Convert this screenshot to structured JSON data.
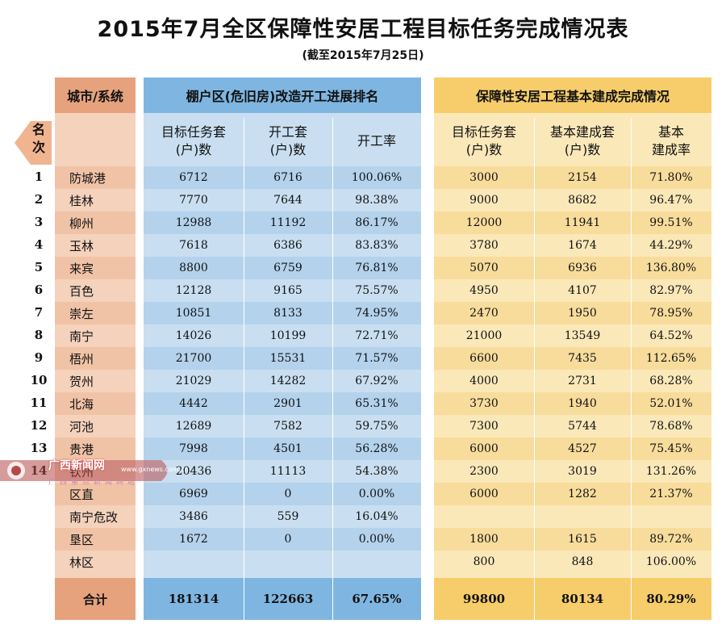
{
  "title": "2015年7月全区保障性安居工程目标任务完成情况表",
  "subtitle": "(截至2015年7月25日)",
  "headers": {
    "city": "城市/系统",
    "mid_group": "棚户区(危旧房)改造开工进展排名",
    "right_group": "保障性安居工程基本建成完成情况",
    "rank": "名次"
  },
  "subheaders": {
    "mid": [
      "目标任务套\n(户)数",
      "开工套\n(户)数",
      "开工率"
    ],
    "right": [
      "目标任务套\n(户)数",
      "基本建成套\n(户)数",
      "基本\n建成率"
    ]
  },
  "rows": [
    {
      "rank": "1",
      "city": "防城港",
      "m1": "6712",
      "m2": "6716",
      "m3": "100.06%",
      "r1": "3000",
      "r2": "2154",
      "r3": "71.80%"
    },
    {
      "rank": "2",
      "city": "桂林",
      "m1": "7770",
      "m2": "7644",
      "m3": "98.38%",
      "r1": "9000",
      "r2": "8682",
      "r3": "96.47%"
    },
    {
      "rank": "3",
      "city": "柳州",
      "m1": "12988",
      "m2": "11192",
      "m3": "86.17%",
      "r1": "12000",
      "r2": "11941",
      "r3": "99.51%"
    },
    {
      "rank": "4",
      "city": "玉林",
      "m1": "7618",
      "m2": "6386",
      "m3": "83.83%",
      "r1": "3780",
      "r2": "1674",
      "r3": "44.29%"
    },
    {
      "rank": "5",
      "city": "来宾",
      "m1": "8800",
      "m2": "6759",
      "m3": "76.81%",
      "r1": "5070",
      "r2": "6936",
      "r3": "136.80%"
    },
    {
      "rank": "6",
      "city": "百色",
      "m1": "12128",
      "m2": "9165",
      "m3": "75.57%",
      "r1": "4950",
      "r2": "4107",
      "r3": "82.97%"
    },
    {
      "rank": "7",
      "city": "崇左",
      "m1": "10851",
      "m2": "8133",
      "m3": "74.95%",
      "r1": "2470",
      "r2": "1950",
      "r3": "78.95%"
    },
    {
      "rank": "8",
      "city": "南宁",
      "m1": "14026",
      "m2": "10199",
      "m3": "72.71%",
      "r1": "21000",
      "r2": "13549",
      "r3": "64.52%"
    },
    {
      "rank": "9",
      "city": "梧州",
      "m1": "21700",
      "m2": "15531",
      "m3": "71.57%",
      "r1": "6600",
      "r2": "7435",
      "r3": "112.65%"
    },
    {
      "rank": "10",
      "city": "贺州",
      "m1": "21029",
      "m2": "14282",
      "m3": "67.92%",
      "r1": "4000",
      "r2": "2731",
      "r3": "68.28%"
    },
    {
      "rank": "11",
      "city": "北海",
      "m1": "4442",
      "m2": "2901",
      "m3": "65.31%",
      "r1": "3730",
      "r2": "1940",
      "r3": "52.01%"
    },
    {
      "rank": "12",
      "city": "河池",
      "m1": "12689",
      "m2": "7582",
      "m3": "59.75%",
      "r1": "7300",
      "r2": "5744",
      "r3": "78.68%"
    },
    {
      "rank": "13",
      "city": "贵港",
      "m1": "7998",
      "m2": "4501",
      "m3": "56.28%",
      "r1": "6000",
      "r2": "4527",
      "r3": "75.45%"
    },
    {
      "rank": "14",
      "city": "钦州",
      "m1": "20436",
      "m2": "11113",
      "m3": "54.38%",
      "r1": "2300",
      "r2": "3019",
      "r3": "131.26%"
    },
    {
      "rank": "",
      "city": "区直",
      "m1": "6969",
      "m2": "0",
      "m3": "0.00%",
      "r1": "6000",
      "r2": "1282",
      "r3": "21.37%"
    },
    {
      "rank": "",
      "city": "南宁危改",
      "m1": "3486",
      "m2": "559",
      "m3": "16.04%",
      "r1": "",
      "r2": "",
      "r3": ""
    },
    {
      "rank": "",
      "city": "垦区",
      "m1": "1672",
      "m2": "0",
      "m3": "0.00%",
      "r1": "1800",
      "r2": "1615",
      "r3": "89.72%"
    },
    {
      "rank": "",
      "city": "林区",
      "m1": "",
      "m2": "",
      "m3": "",
      "r1": "800",
      "r2": "848",
      "r3": "106.00%"
    }
  ],
  "total": {
    "label": "合计",
    "m1": "181314",
    "m2": "122663",
    "m3": "67.65%",
    "r1": "99800",
    "r2": "80134",
    "r3": "80.29%"
  },
  "watermark": {
    "name": "广西新闻网",
    "sub": "广西重点新闻网站",
    "url": "www.gxnews.com.cn"
  },
  "colors": {
    "city_bg": "#f4d2bc",
    "city_header": "#e6a27d",
    "mid_bg": "#c9dff1",
    "mid_header": "#7fb6e1",
    "right_bg": "#fbe8b9",
    "right_header": "#f6cd6a"
  }
}
